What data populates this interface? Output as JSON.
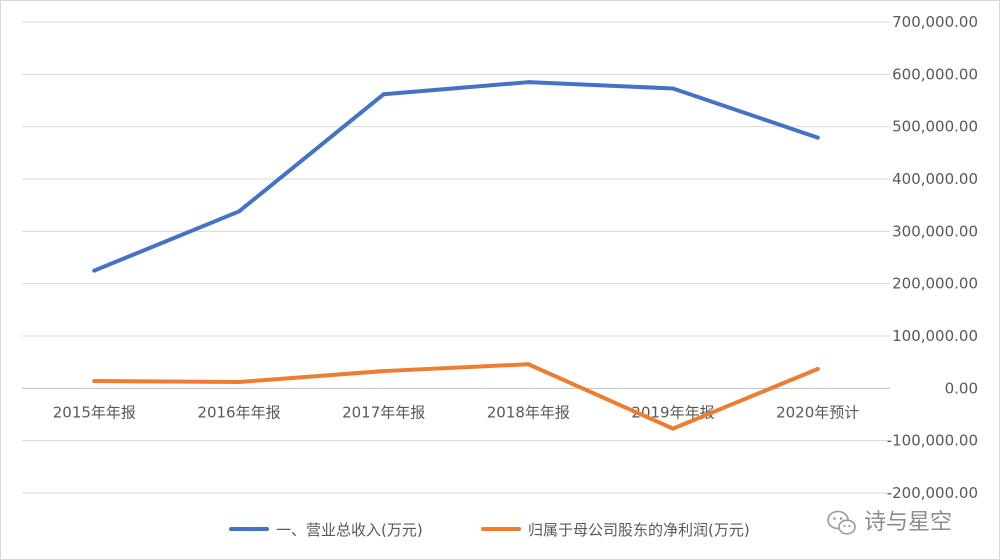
{
  "chart_data": {
    "type": "line",
    "categories": [
      "2015年年报",
      "2016年年报",
      "2017年年报",
      "2018年年报",
      "2019年年报",
      "2020年预计"
    ],
    "series": [
      {
        "name": "一、营业总收入(万元)",
        "color": "#4472c4",
        "values": [
          225000,
          338000,
          562000,
          585000,
          573000,
          479000
        ]
      },
      {
        "name": "归属于母公司股东的净利润(万元)",
        "color": "#ed7d31",
        "values": [
          14000,
          12000,
          33000,
          46000,
          -77000,
          37000
        ]
      }
    ],
    "yaxis": {
      "position": "right",
      "min": -200000,
      "max": 700000,
      "step": 100000,
      "tick_labels": [
        "-200,000.00",
        "-100,000.00",
        "0.00",
        "100,000.00",
        "200,000.00",
        "300,000.00",
        "400,000.00",
        "500,000.00",
        "600,000.00",
        "700,000.00"
      ]
    },
    "grid": true,
    "legend": "bottom-center",
    "title": "",
    "xlabel": "",
    "ylabel": ""
  },
  "watermark": {
    "text": "诗与星空",
    "icon": "wechat-icon"
  }
}
